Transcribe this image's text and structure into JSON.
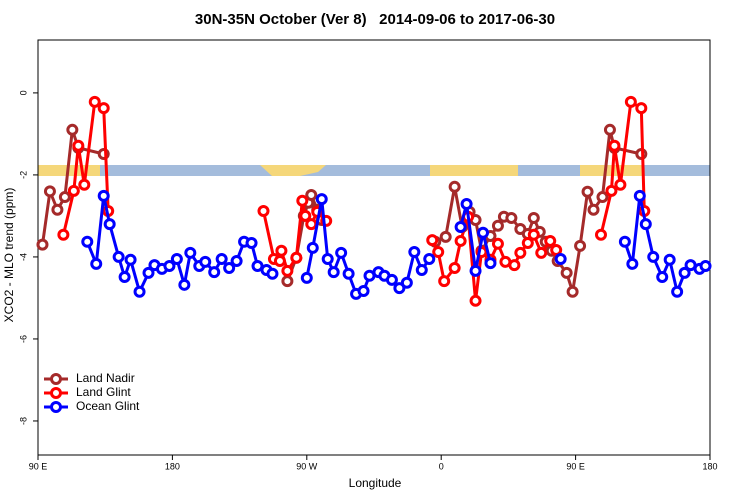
{
  "chart_data": {
    "type": "line",
    "title": "30N-35N October (Ver 8)   2014-09-06 to 2017-06-30",
    "x_label": "Longitude",
    "y_label": "XCO2 - MLO trend (ppm)",
    "xlim": [
      90,
      540
    ],
    "ylim": [
      -8.83,
      1.29
    ],
    "xticks": [
      {
        "value": 90,
        "label": "90 E"
      },
      180,
      {
        "value": 270,
        "label": "90 W"
      },
      {
        "value": 360,
        "label": "0"
      },
      {
        "value": 450,
        "label": "90 E"
      },
      {
        "value": 540,
        "label": "180"
      }
    ],
    "yticks": [
      0,
      -2,
      -4,
      -6,
      -8
    ],
    "legend": "bottom-left",
    "series": [
      {
        "name": "Land Nadir",
        "color": "#a52a2a",
        "x": [
          93,
          98,
          103,
          108,
          113,
          117,
          134,
          null,
          257,
          263,
          268,
          271,
          273,
          277,
          280,
          null,
          356,
          363,
          369,
          374,
          379,
          383,
          387,
          393,
          398,
          402,
          407,
          413,
          418,
          422,
          426,
          430,
          434,
          438,
          444,
          448,
          453,
          458,
          462,
          468,
          473,
          476,
          494
        ],
        "values": [
          -3.7,
          -2.4,
          -2.85,
          -2.54,
          -0.9,
          -1.34,
          -1.49,
          null,
          -4.59,
          -4.02,
          -3.0,
          -2.68,
          -2.49,
          -2.85,
          -3.1,
          null,
          -3.63,
          -3.51,
          -2.29,
          -3.27,
          -2.9,
          -3.1,
          -3.85,
          -3.49,
          -3.24,
          -3.02,
          -3.05,
          -3.32,
          -3.44,
          -3.05,
          -3.39,
          -3.63,
          -3.85,
          -4.1,
          -4.39,
          -4.85,
          -3.73,
          -2.41,
          -2.85,
          -2.54,
          -0.9,
          -1.34,
          -1.49
        ]
      },
      {
        "name": "Land Glint",
        "color": "#ff0000",
        "x": [
          107,
          114,
          117,
          121,
          128,
          134,
          137,
          null,
          241,
          248,
          252,
          253,
          257,
          263,
          267,
          269,
          273,
          277,
          283,
          null,
          354,
          358,
          362,
          369,
          373,
          378,
          383,
          387,
          393,
          398,
          403,
          409,
          413,
          418,
          422,
          427,
          433,
          437,
          null,
          467,
          474,
          476,
          480,
          487,
          494,
          496
        ],
        "values": [
          -3.46,
          -2.39,
          -1.29,
          -2.24,
          -0.22,
          -0.37,
          -2.88,
          null,
          -2.88,
          -4.05,
          -4.1,
          -3.85,
          -4.34,
          -4.02,
          -2.63,
          -3.0,
          -3.2,
          -2.9,
          -3.12,
          null,
          -3.59,
          -3.88,
          -4.59,
          -4.27,
          -3.61,
          -3.02,
          -5.07,
          -3.88,
          -4.07,
          -3.68,
          -4.12,
          -4.2,
          -3.9,
          -3.66,
          -3.46,
          -3.9,
          -3.61,
          -3.83,
          null,
          -3.46,
          -2.39,
          -1.29,
          -2.24,
          -0.22,
          -0.37,
          -2.88
        ]
      },
      {
        "name": "Ocean Glint",
        "color": "#0000ff",
        "x": [
          123,
          129,
          134,
          138,
          144,
          148,
          152,
          158,
          164,
          168,
          173,
          178,
          183,
          188,
          192,
          198,
          202,
          208,
          213,
          218,
          223,
          228,
          233,
          237,
          243,
          247,
          null,
          270,
          274,
          280,
          284,
          288,
          293,
          298,
          303,
          308,
          312,
          318,
          322,
          327,
          332,
          337,
          342,
          347,
          352,
          null,
          373,
          377,
          383,
          388,
          393,
          null,
          440,
          null,
          483,
          488,
          493,
          497,
          502,
          508,
          513,
          518,
          523,
          527,
          533,
          537
        ],
        "values": [
          -3.63,
          -4.17,
          -2.51,
          -3.2,
          -4.0,
          -4.49,
          -4.07,
          -4.85,
          -4.39,
          -4.2,
          -4.29,
          -4.22,
          -4.05,
          -4.68,
          -3.9,
          -4.22,
          -4.12,
          -4.37,
          -4.05,
          -4.27,
          -4.1,
          -3.63,
          -3.66,
          -4.22,
          -4.32,
          -4.41,
          null,
          -4.51,
          -3.78,
          -2.59,
          -4.05,
          -4.37,
          -3.9,
          -4.41,
          -4.9,
          -4.83,
          -4.46,
          -4.37,
          -4.46,
          -4.56,
          -4.76,
          -4.63,
          -3.88,
          -4.32,
          -4.05,
          null,
          -3.27,
          -2.71,
          -4.34,
          -3.41,
          -4.15,
          null,
          -4.05,
          null,
          -3.63,
          -4.17,
          -2.51,
          -3.2,
          -4.0,
          -4.49,
          -4.07,
          -4.85,
          -4.39,
          -4.2,
          -4.29,
          -4.22
        ]
      }
    ]
  }
}
